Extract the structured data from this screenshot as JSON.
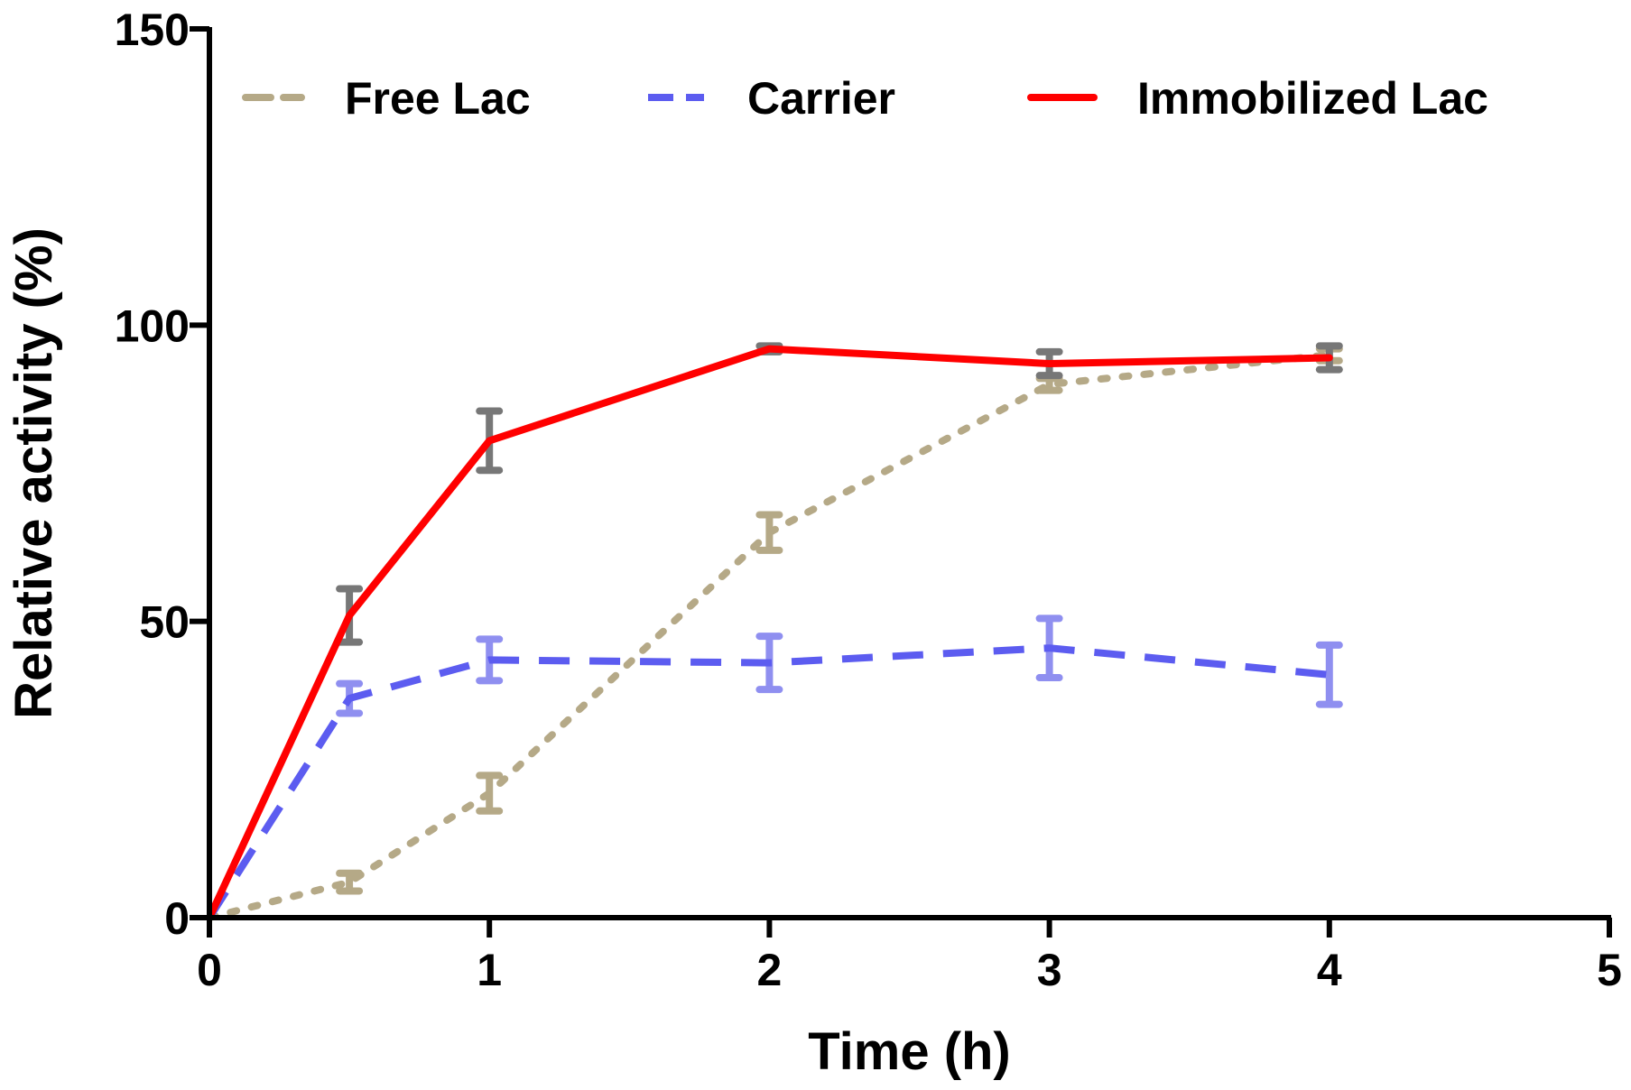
{
  "chart_data": {
    "type": "line",
    "title": "",
    "xlabel": "Time (h)",
    "ylabel": "Relative activity (%)",
    "xlim": [
      0,
      5
    ],
    "ylim": [
      0,
      150
    ],
    "x_ticks": [
      "0",
      "1",
      "2",
      "3",
      "4",
      "5"
    ],
    "y_ticks": [
      "0",
      "50",
      "100",
      "150"
    ],
    "x_tick_values": [
      0,
      1,
      2,
      3,
      4,
      5
    ],
    "y_tick_values": [
      0,
      50,
      100,
      150
    ],
    "grid": false,
    "legend_position": "top",
    "series": [
      {
        "name": "Free Lac",
        "color": "#b5a987",
        "style": "dotted",
        "x": [
          0,
          0.5,
          1,
          2,
          3,
          4
        ],
        "y": [
          0,
          6,
          21,
          65,
          90,
          95
        ],
        "err": [
          0,
          1.5,
          3,
          3,
          1,
          1
        ],
        "err_color": "#b5a987"
      },
      {
        "name": "Carrier",
        "color": "#5c5cf0",
        "style": "dashed",
        "x": [
          0,
          0.5,
          1,
          2,
          3,
          4
        ],
        "y": [
          0,
          37,
          43.5,
          43,
          45.5,
          41
        ],
        "err": [
          0,
          2.5,
          3.5,
          4.5,
          5,
          5
        ],
        "err_color": "#8f8ff0"
      },
      {
        "name": "Immobilized Lac",
        "color": "#ff0000",
        "style": "solid",
        "x": [
          0,
          0.5,
          1,
          2,
          3,
          4
        ],
        "y": [
          0,
          51,
          80.5,
          96,
          93.5,
          94.5
        ],
        "err": [
          0,
          4.5,
          5,
          0.5,
          2,
          2
        ],
        "err_color": "#777777"
      }
    ]
  }
}
